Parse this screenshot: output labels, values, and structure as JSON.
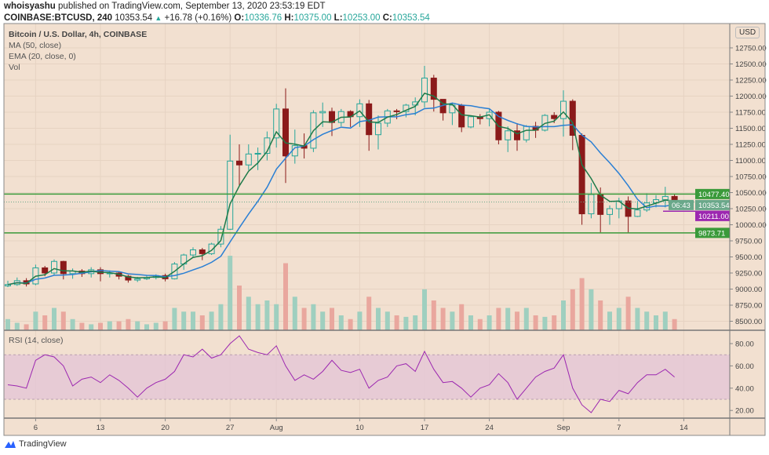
{
  "header": {
    "author": "whoisyashu",
    "published": "published on TradingView.com, September 13, 2020 23:53:19 EDT",
    "symbol": "COINBASE:BTCUSD, 240",
    "last": "10353.54",
    "change": "+16.78 (+0.16%)",
    "o_label": "O:",
    "o": "10336.76",
    "h_label": "H:",
    "h": "10375.00",
    "l_label": "L:",
    "l": "10253.00",
    "c_label": "C:",
    "c": "10353.54"
  },
  "legend": {
    "title": "Bitcoin / U.S. Dollar, 4h, COINBASE",
    "ma": "MA (50, close)",
    "ema": "EMA (20, close, 0)",
    "vol": "Vol",
    "rsi": "RSI (14, close)"
  },
  "currency_label": "USD",
  "footer_brand": "TradingView",
  "colors": {
    "background": "#f2e0d0",
    "up": "#26a69a",
    "down": "#8b1a1a",
    "ma": "#2a7fd4",
    "ema": "#1e7b4a",
    "level": "#3a9a3a",
    "support_purple": "#9c27b0",
    "rsi": "#9c27b0",
    "rsi_band": "#e3c6d6"
  },
  "chart_data": [
    {
      "type": "candlestick",
      "title": "Bitcoin / U.S. Dollar, 4h, COINBASE",
      "x_start": "2020-07-03",
      "x_end": "2020-09-13",
      "x_ticks": [
        "6",
        "13",
        "20",
        "27",
        "Aug",
        "10",
        "17",
        "24",
        "Sep",
        "7",
        "14"
      ],
      "y_ticks": [
        "8500.00",
        "8750.00",
        "9000.00",
        "9250.00",
        "9500.00",
        "9750.00",
        "10000.00",
        "10250.00",
        "10500.00",
        "10750.00",
        "11000.00",
        "11250.00",
        "11500.00",
        "11750.00",
        "12000.00",
        "12250.00",
        "12500.00",
        "12750.00"
      ],
      "ylim": [
        8450,
        13000
      ],
      "open_first": 9050,
      "high": [
        9130,
        9180,
        9170,
        9380,
        9360,
        9460,
        9440,
        9320,
        9310,
        9340,
        9340,
        9290,
        9270,
        9220,
        9190,
        9220,
        9230,
        9240,
        9420,
        9550,
        9650,
        9640,
        9720,
        9980,
        11400,
        11250,
        11250,
        11200,
        11450,
        11880,
        12120,
        11480,
        11420,
        11780,
        11900,
        11820,
        11800,
        11780,
        11950,
        11940,
        11700,
        11800,
        11800,
        11880,
        11980,
        12470,
        12330,
        11880,
        11900,
        11880,
        11690,
        11720,
        11800,
        11770,
        11530,
        11580,
        11550,
        11600,
        11720,
        11750,
        12090,
        11950,
        11420,
        10650,
        10580,
        10300,
        10420,
        10440,
        10370,
        10490,
        10460,
        10590,
        10470
      ],
      "low": [
        9030,
        9050,
        9040,
        9060,
        9200,
        9220,
        9150,
        9160,
        9190,
        9180,
        9120,
        9180,
        9150,
        9100,
        9110,
        9140,
        9150,
        9120,
        9150,
        9300,
        9500,
        9450,
        9530,
        9650,
        9920,
        10600,
        10850,
        10850,
        11000,
        11200,
        10650,
        10950,
        11030,
        11130,
        11520,
        11380,
        11530,
        11520,
        11520,
        11150,
        11170,
        11520,
        11640,
        11670,
        11700,
        11820,
        11760,
        11620,
        11550,
        11440,
        11500,
        11560,
        11530,
        11250,
        11130,
        11150,
        11280,
        11350,
        11450,
        11580,
        11370,
        11160,
        10000,
        10100,
        9880,
        10000,
        10100,
        9880,
        10120,
        10200,
        10270,
        10270,
        10250
      ],
      "close": [
        9070,
        9130,
        9080,
        9330,
        9250,
        9430,
        9240,
        9280,
        9240,
        9300,
        9240,
        9250,
        9200,
        9140,
        9160,
        9180,
        9210,
        9160,
        9390,
        9530,
        9610,
        9550,
        9700,
        9930,
        10990,
        10930,
        11100,
        11110,
        11350,
        11800,
        11070,
        11230,
        11190,
        11740,
        11760,
        11590,
        11760,
        11680,
        11880,
        11400,
        11580,
        11770,
        11760,
        11860,
        11910,
        12280,
        11950,
        11740,
        11860,
        11520,
        11680,
        11650,
        11750,
        11320,
        11460,
        11320,
        11530,
        11470,
        11700,
        11650,
        11920,
        11390,
        10170,
        10470,
        10160,
        10250,
        10370,
        10130,
        10230,
        10340,
        10390,
        10440,
        10353.54
      ],
      "volume_relative": [
        15,
        10,
        8,
        25,
        20,
        30,
        25,
        15,
        10,
        8,
        10,
        12,
        12,
        15,
        12,
        8,
        10,
        12,
        30,
        25,
        25,
        20,
        25,
        35,
        100,
        60,
        45,
        35,
        40,
        35,
        90,
        45,
        30,
        35,
        25,
        30,
        20,
        15,
        25,
        45,
        30,
        25,
        20,
        18,
        20,
        55,
        40,
        30,
        25,
        35,
        20,
        15,
        20,
        30,
        30,
        25,
        30,
        20,
        18,
        20,
        40,
        55,
        70,
        55,
        40,
        25,
        30,
        45,
        30,
        25,
        20,
        25,
        15
      ],
      "levels": [
        {
          "label": "10477.40",
          "value": 10477.4,
          "color": "#3a9a3a",
          "style": "solid"
        },
        {
          "label": "9873.71",
          "value": 9873.71,
          "color": "#3a9a3a",
          "style": "solid"
        },
        {
          "label": "10211.00",
          "value": 10211.0,
          "color": "#9c27b0",
          "style": "solid-partial"
        },
        {
          "label": "10353.54",
          "value": 10353.54,
          "color": "#6aa88a",
          "style": "dotted"
        }
      ],
      "countdown": "06:43"
    },
    {
      "type": "line",
      "title": "RSI (14, close)",
      "y_ticks": [
        "20.00",
        "40.00",
        "60.00",
        "80.00"
      ],
      "ylim": [
        10,
        90
      ],
      "band": [
        30,
        70
      ],
      "values": [
        43,
        42,
        40,
        65,
        70,
        68,
        60,
        42,
        48,
        50,
        45,
        52,
        47,
        40,
        32,
        40,
        45,
        48,
        55,
        70,
        68,
        75,
        67,
        70,
        80,
        87,
        75,
        72,
        70,
        78,
        60,
        47,
        52,
        48,
        55,
        65,
        56,
        54,
        57,
        40,
        47,
        50,
        60,
        62,
        55,
        73,
        57,
        45,
        46,
        40,
        32,
        40,
        43,
        53,
        45,
        30,
        40,
        50,
        55,
        58,
        70,
        40,
        25,
        18,
        30,
        28,
        38,
        35,
        45,
        52,
        52,
        57,
        50
      ]
    }
  ]
}
